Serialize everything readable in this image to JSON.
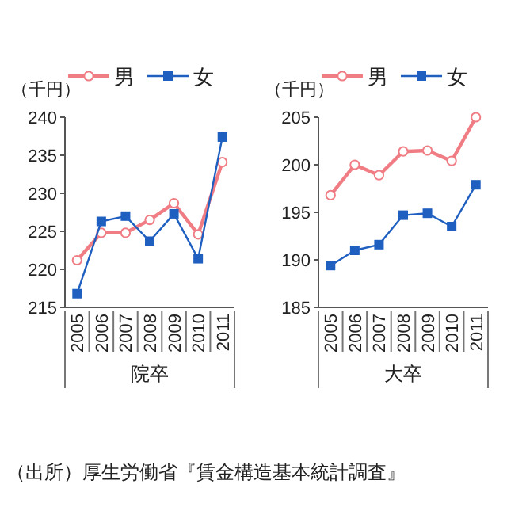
{
  "chart_data": [
    {
      "type": "line",
      "xlabel": "院卒",
      "ylabel": "（千円）",
      "categories": [
        "2005",
        "2006",
        "2007",
        "2008",
        "2009",
        "2010",
        "2011"
      ],
      "series": [
        {
          "name": "男",
          "color": "#f07c84",
          "marker": "circle",
          "values": [
            221.2,
            224.8,
            224.8,
            226.5,
            228.7,
            224.6,
            234.1
          ]
        },
        {
          "name": "女",
          "color": "#1f5fc0",
          "marker": "square",
          "values": [
            216.8,
            226.3,
            227.0,
            223.7,
            227.3,
            221.4,
            237.4
          ]
        }
      ],
      "ylim": [
        215,
        240
      ],
      "yticks": [
        215,
        220,
        225,
        230,
        235,
        240
      ],
      "legend": "top",
      "grid": false
    },
    {
      "type": "line",
      "xlabel": "大卒",
      "ylabel": "（千円）",
      "categories": [
        "2005",
        "2006",
        "2007",
        "2008",
        "2009",
        "2010",
        "2011"
      ],
      "series": [
        {
          "name": "男",
          "color": "#f07c84",
          "marker": "circle",
          "values": [
            196.8,
            200.0,
            198.9,
            201.4,
            201.5,
            200.4,
            205.0
          ]
        },
        {
          "name": "女",
          "color": "#1f5fc0",
          "marker": "square",
          "values": [
            189.4,
            191.0,
            191.6,
            194.7,
            194.9,
            193.5,
            197.9
          ]
        }
      ],
      "ylim": [
        185,
        205
      ],
      "yticks": [
        185,
        190,
        195,
        200,
        205
      ],
      "legend": "top",
      "grid": false,
      "annotations": [
        "（出所）厚生労働省『賃金構造基本統計調査』"
      ]
    }
  ]
}
